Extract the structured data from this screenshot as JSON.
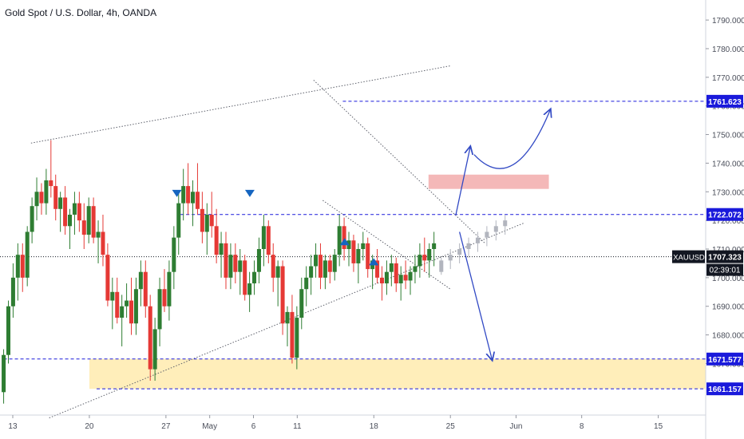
{
  "header": {
    "title": "Gold Spot / U.S. Dollar, 4h, OANDA"
  },
  "colors": {
    "up": "#26a69a",
    "up_body": "#2e7d32",
    "down": "#ef5350",
    "down_body": "#e53935",
    "ghost": "#b2b5be",
    "level_line": "#1a1adb",
    "arrow": "#3149c4",
    "marker": "#1565c0",
    "supply_zone": "#ef9a9a",
    "demand_zone": "#ffe082",
    "axis_text": "#4a4e5a",
    "price_tag": "#131722",
    "level_tag": "#1a1adb"
  },
  "price_axis": {
    "ticks": [
      "1790.000",
      "1780.000",
      "1770.000",
      "1760.000",
      "1750.000",
      "1740.000",
      "1730.000",
      "1720.000",
      "1710.000",
      "1700.000",
      "1690.000",
      "1680.000",
      "1670.000"
    ],
    "tick_values": [
      1790,
      1780,
      1770,
      1760,
      1750,
      1740,
      1730,
      1720,
      1710,
      1700,
      1690,
      1680,
      1670
    ]
  },
  "date_axis": {
    "labels": [
      {
        "label": "13",
        "bar": 5
      },
      {
        "label": "20",
        "bar": 47
      },
      {
        "label": "27",
        "bar": 89
      },
      {
        "label": "May",
        "bar": 113
      },
      {
        "label": "6",
        "bar": 137
      },
      {
        "label": "11",
        "bar": 161
      },
      {
        "label": "18",
        "bar": 203
      },
      {
        "label": "25",
        "bar": 245
      },
      {
        "label": "Jun",
        "bar": 281
      },
      {
        "label": "8",
        "bar": 317
      },
      {
        "label": "15",
        "bar": 359
      }
    ]
  },
  "level_tags": [
    {
      "label": "1761.623",
      "value": 1761.623
    },
    {
      "label": "1722.072",
      "value": 1722.072
    },
    {
      "label": "1671.577",
      "value": 1671.577
    },
    {
      "label": "1661.157",
      "value": 1661.157
    }
  ],
  "current_price": {
    "symbol": "XAUUSD",
    "value": "1707.323",
    "price": 1707.323,
    "countdown": "02:39:01"
  },
  "chart_data": {
    "type": "candlestick",
    "title": "Gold Spot / U.S. Dollar, 4h, OANDA",
    "symbol": "XAUUSD",
    "timeframe": "4h",
    "ylim": [
      1652,
      1797
    ],
    "xlim_bars": [
      -2,
      385
    ],
    "current_price": 1707.323,
    "candles": [
      [
        1660,
        1675,
        1656,
        1673
      ],
      [
        1673,
        1692,
        1670,
        1690
      ],
      [
        1690,
        1705,
        1686,
        1700
      ],
      [
        1700,
        1712,
        1692,
        1708
      ],
      [
        1708,
        1712,
        1695,
        1700
      ],
      [
        1700,
        1718,
        1697,
        1716
      ],
      [
        1716,
        1728,
        1712,
        1725
      ],
      [
        1725,
        1735,
        1720,
        1730
      ],
      [
        1730,
        1733,
        1722,
        1726
      ],
      [
        1726,
        1738,
        1722,
        1734
      ],
      [
        1734,
        1748,
        1728,
        1732
      ],
      [
        1732,
        1736,
        1720,
        1724
      ],
      [
        1724,
        1730,
        1716,
        1728
      ],
      [
        1728,
        1732,
        1715,
        1718
      ],
      [
        1718,
        1724,
        1710,
        1722
      ],
      [
        1722,
        1730,
        1715,
        1726
      ],
      [
        1726,
        1730,
        1716,
        1720
      ],
      [
        1720,
        1726,
        1710,
        1715
      ],
      [
        1715,
        1728,
        1712,
        1725
      ],
      [
        1725,
        1728,
        1712,
        1714
      ],
      [
        1714,
        1720,
        1705,
        1716
      ],
      [
        1716,
        1722,
        1704,
        1708
      ],
      [
        1708,
        1712,
        1690,
        1692
      ],
      [
        1692,
        1700,
        1682,
        1695
      ],
      [
        1695,
        1700,
        1684,
        1686
      ],
      [
        1686,
        1694,
        1676,
        1690
      ],
      [
        1690,
        1698,
        1686,
        1692
      ],
      [
        1692,
        1700,
        1680,
        1684
      ],
      [
        1684,
        1700,
        1680,
        1696
      ],
      [
        1696,
        1706,
        1690,
        1702
      ],
      [
        1702,
        1706,
        1686,
        1690
      ],
      [
        1690,
        1694,
        1664,
        1668
      ],
      [
        1668,
        1686,
        1664,
        1682
      ],
      [
        1682,
        1700,
        1676,
        1696
      ],
      [
        1696,
        1703,
        1688,
        1690
      ],
      [
        1690,
        1706,
        1685,
        1702
      ],
      [
        1702,
        1718,
        1696,
        1714
      ],
      [
        1714,
        1730,
        1708,
        1726
      ],
      [
        1726,
        1738,
        1720,
        1732
      ],
      [
        1732,
        1740,
        1722,
        1726
      ],
      [
        1726,
        1734,
        1718,
        1730
      ],
      [
        1730,
        1740,
        1722,
        1724
      ],
      [
        1724,
        1730,
        1712,
        1716
      ],
      [
        1716,
        1726,
        1708,
        1722
      ],
      [
        1722,
        1730,
        1714,
        1718
      ],
      [
        1718,
        1724,
        1705,
        1708
      ],
      [
        1708,
        1716,
        1700,
        1712
      ],
      [
        1712,
        1716,
        1696,
        1700
      ],
      [
        1700,
        1712,
        1696,
        1708
      ],
      [
        1708,
        1712,
        1698,
        1702
      ],
      [
        1702,
        1710,
        1694,
        1706
      ],
      [
        1706,
        1708,
        1692,
        1694
      ],
      [
        1694,
        1702,
        1688,
        1698
      ],
      [
        1698,
        1706,
        1694,
        1702
      ],
      [
        1702,
        1714,
        1698,
        1710
      ],
      [
        1710,
        1722,
        1704,
        1718
      ],
      [
        1718,
        1720,
        1705,
        1708
      ],
      [
        1708,
        1712,
        1695,
        1700
      ],
      [
        1700,
        1706,
        1690,
        1704
      ],
      [
        1704,
        1706,
        1680,
        1684
      ],
      [
        1684,
        1690,
        1676,
        1688
      ],
      [
        1688,
        1694,
        1670,
        1672
      ],
      [
        1672,
        1690,
        1668,
        1686
      ],
      [
        1686,
        1700,
        1682,
        1696
      ],
      [
        1696,
        1704,
        1690,
        1700
      ],
      [
        1700,
        1708,
        1694,
        1704
      ],
      [
        1704,
        1712,
        1700,
        1708
      ],
      [
        1708,
        1712,
        1696,
        1700
      ],
      [
        1700,
        1708,
        1696,
        1706
      ],
      [
        1706,
        1708,
        1698,
        1702
      ],
      [
        1702,
        1710,
        1699,
        1708
      ],
      [
        1708,
        1722,
        1704,
        1718
      ],
      [
        1718,
        1721,
        1706,
        1710
      ],
      [
        1710,
        1716,
        1704,
        1713
      ],
      [
        1713,
        1715,
        1702,
        1705
      ],
      [
        1705,
        1712,
        1698,
        1710
      ],
      [
        1710,
        1716,
        1706,
        1712
      ],
      [
        1712,
        1714,
        1700,
        1703
      ],
      [
        1703,
        1708,
        1696,
        1706
      ],
      [
        1706,
        1710,
        1698,
        1700
      ],
      [
        1700,
        1704,
        1692,
        1698
      ],
      [
        1698,
        1706,
        1694,
        1702
      ],
      [
        1702,
        1708,
        1697,
        1705
      ],
      [
        1705,
        1707,
        1695,
        1698
      ],
      [
        1698,
        1704,
        1692,
        1701
      ],
      [
        1701,
        1706,
        1696,
        1699
      ],
      [
        1699,
        1704,
        1694,
        1702
      ],
      [
        1702,
        1708,
        1698,
        1704
      ],
      [
        1704,
        1712,
        1700,
        1708
      ],
      [
        1708,
        1714,
        1702,
        1706
      ],
      [
        1706,
        1712,
        1700,
        1710
      ],
      [
        1710,
        1716,
        1704,
        1712
      ]
    ],
    "projection_ghost": [
      [
        1702,
        1707,
        1701,
        1706
      ],
      [
        1706,
        1710,
        1703,
        1708
      ],
      [
        1708,
        1712,
        1705,
        1710
      ],
      [
        1710,
        1714,
        1707,
        1712
      ],
      [
        1712,
        1716,
        1709,
        1714
      ],
      [
        1714,
        1718,
        1711,
        1716
      ],
      [
        1716,
        1720,
        1713,
        1718
      ],
      [
        1718,
        1722,
        1715,
        1720
      ]
    ],
    "levels": [
      1761.623,
      1722.072,
      1671.577,
      1661.157
    ],
    "zones": [
      {
        "name": "supply",
        "from": 1731,
        "to": 1736
      },
      {
        "name": "demand",
        "from": 1661.157,
        "to": 1671.577
      }
    ],
    "markers": [
      {
        "type": "down",
        "bar": 95,
        "price": 1729
      },
      {
        "type": "down",
        "bar": 135,
        "price": 1729
      },
      {
        "type": "up",
        "bar": 187,
        "price": 1713
      },
      {
        "type": "up",
        "bar": 203,
        "price": 1706
      }
    ],
    "trendlines": [
      {
        "name": "upper-channel",
        "from": [
          15,
          1747
        ],
        "to": [
          245,
          1774
        ]
      },
      {
        "name": "lower-channel",
        "from": [
          25,
          1651
        ],
        "to": [
          285,
          1719
        ]
      },
      {
        "name": "falling-wedge-top",
        "from": [
          170,
          1769
        ],
        "to": [
          264,
          1712
        ]
      },
      {
        "name": "falling-wedge-bottom",
        "from": [
          175,
          1727
        ],
        "to": [
          245,
          1696
        ]
      }
    ],
    "projection_arrows": [
      {
        "name": "bullish-path-up",
        "from": [
          248,
          1722
        ],
        "to": [
          256,
          1746
        ]
      },
      {
        "name": "bullish-curve",
        "from": [
          258,
          1743
        ],
        "via": [
          280,
          1728
        ],
        "to": [
          300,
          1759
        ]
      },
      {
        "name": "bearish-path-down",
        "from": [
          250,
          1716
        ],
        "to": [
          268,
          1671
        ]
      }
    ]
  }
}
